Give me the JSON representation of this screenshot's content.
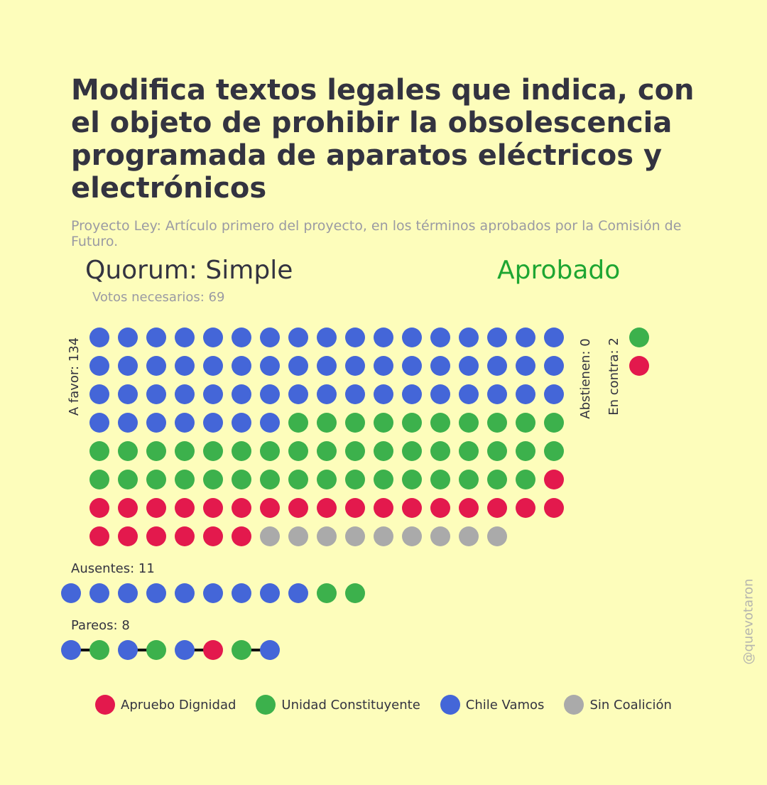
{
  "header": {
    "title": "Modifica textos legales que indica, con el objeto de prohibir la obsolescencia programada de aparatos eléctricos y electrónicos",
    "subtitle": "Proyecto Ley: Artículo primero del proyecto, en los términos aprobados por la Comisión de Futuro.",
    "quorum": "Quorum: Simple",
    "result": "Aprobado",
    "votes_needed": "Votos necesarios: 69"
  },
  "colors": {
    "Apruebo Dignidad": "#e3194d",
    "Unidad Constituyente": "#3cb14c",
    "Chile Vamos": "#4466d8",
    "Sin Coalición": "#aaaaaa",
    "result": "#1ea632"
  },
  "chart_data": {
    "type": "dot-matrix",
    "title": "Modifica textos legales que indica, con el objeto de prohibir la obsolescencia programada de aparatos eléctricos y electrónicos",
    "groups": [
      {
        "key": "a_favor",
        "label": "A favor: 134",
        "total": 134,
        "columns": 17,
        "breakdown": [
          {
            "coalition": "Chile Vamos",
            "count": 58
          },
          {
            "coalition": "Unidad Constituyente",
            "count": 43
          },
          {
            "coalition": "Apruebo Dignidad",
            "count": 24
          },
          {
            "coalition": "Sin Coalición",
            "count": 9
          }
        ]
      },
      {
        "key": "abstienen",
        "label": "Abstienen: 0",
        "total": 0,
        "breakdown": []
      },
      {
        "key": "en_contra",
        "label": "En contra: 2",
        "total": 2,
        "breakdown": [
          {
            "coalition": "Unidad Constituyente",
            "count": 1
          },
          {
            "coalition": "Apruebo Dignidad",
            "count": 1
          }
        ]
      },
      {
        "key": "ausentes",
        "label": "Ausentes: 11",
        "total": 11,
        "breakdown": [
          {
            "coalition": "Chile Vamos",
            "count": 9
          },
          {
            "coalition": "Unidad Constituyente",
            "count": 2
          }
        ]
      },
      {
        "key": "pareos",
        "label": "Pareos: 8",
        "total": 8,
        "pairs": [
          [
            "Chile Vamos",
            "Unidad Constituyente"
          ],
          [
            "Chile Vamos",
            "Unidad Constituyente"
          ],
          [
            "Chile Vamos",
            "Apruebo Dignidad"
          ],
          [
            "Unidad Constituyente",
            "Chile Vamos"
          ]
        ]
      }
    ],
    "legend": [
      "Apruebo Dignidad",
      "Unidad Constituyente",
      "Chile Vamos",
      "Sin Coalición"
    ]
  },
  "watermark": "@quevotaron"
}
